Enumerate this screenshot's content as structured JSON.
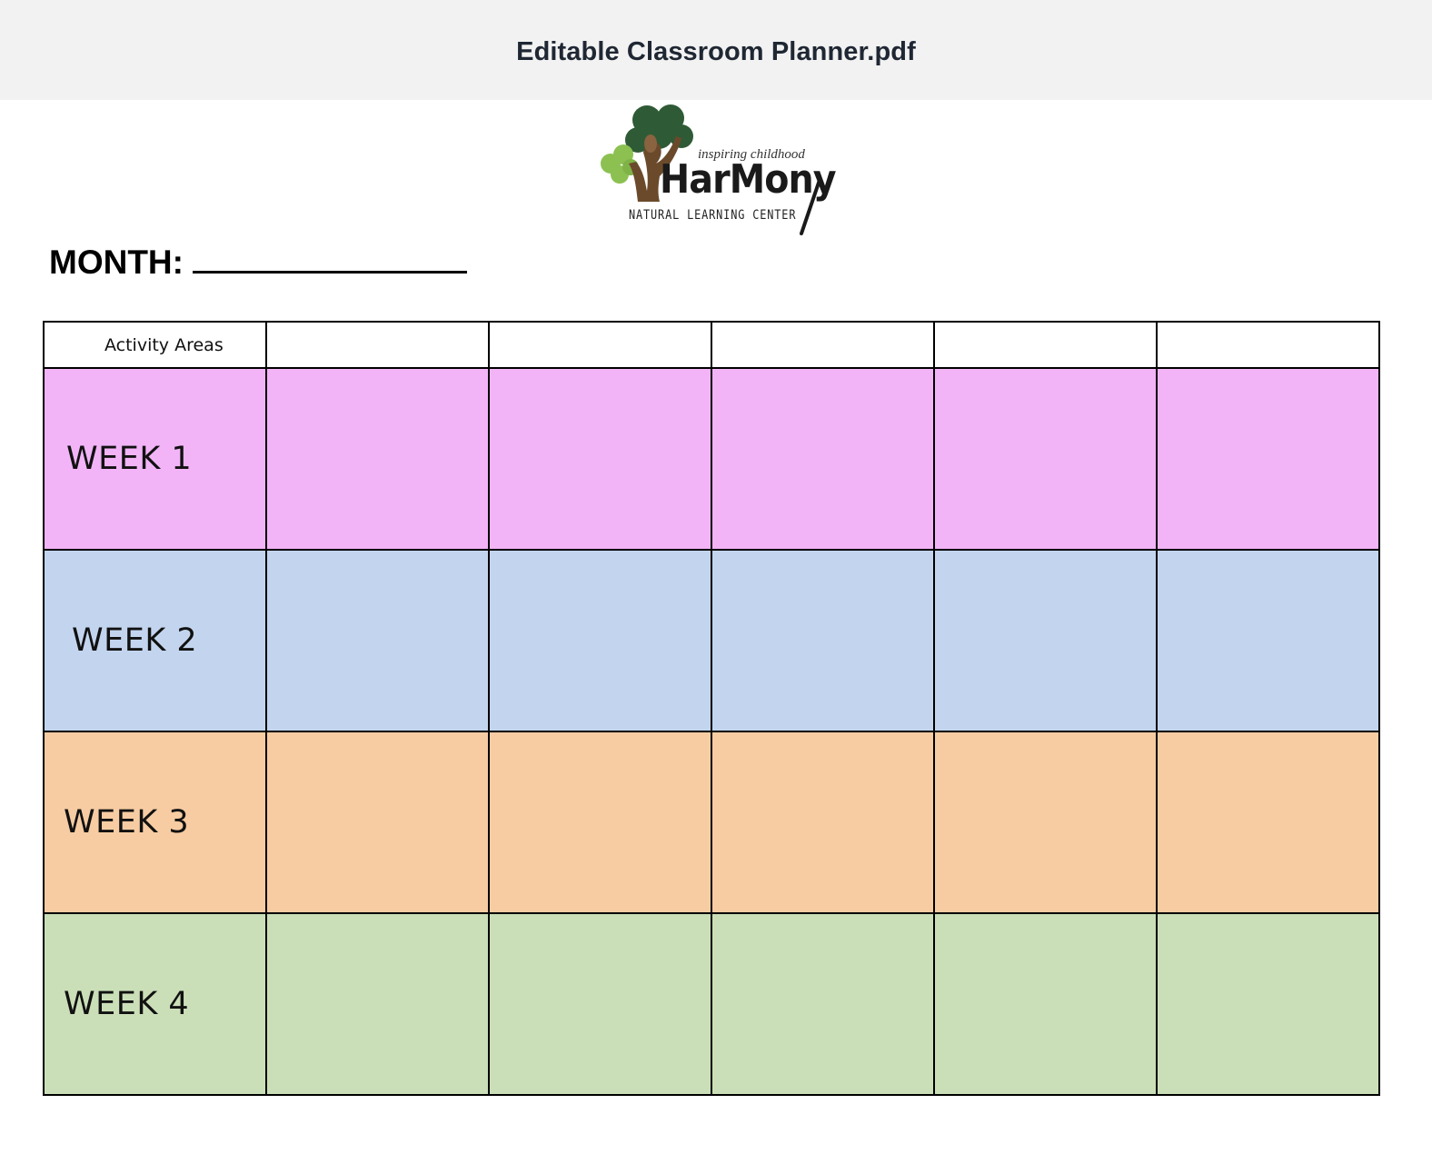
{
  "window": {
    "title": "Editable Classroom Planner.pdf"
  },
  "logo": {
    "tagline": "inspiring childhood",
    "brand": "HarMony",
    "subtitle": "NATURAL LEARNING CENTER",
    "icon": "tree-figure-icon",
    "colors": {
      "dark_leaf": "#2f5a36",
      "light_leaf": "#8cc152",
      "trunk": "#6b4a2b"
    }
  },
  "month": {
    "label": "MONTH:",
    "value": ""
  },
  "planner": {
    "header": {
      "label": "Activity Areas",
      "columns": [
        "",
        "",
        "",
        "",
        ""
      ]
    },
    "weeks": [
      {
        "label": "WEEK 1",
        "color": "#f2b4f7",
        "cells": [
          "",
          "",
          "",
          "",
          ""
        ]
      },
      {
        "label": "WEEK 2",
        "color": "#c3d5ee",
        "cells": [
          "",
          "",
          "",
          "",
          ""
        ]
      },
      {
        "label": "WEEK 3",
        "color": "#f7cca2",
        "cells": [
          "",
          "",
          "",
          "",
          ""
        ]
      },
      {
        "label": "WEEK 4",
        "color": "#cadfb8",
        "cells": [
          "",
          "",
          "",
          "",
          ""
        ]
      }
    ]
  }
}
